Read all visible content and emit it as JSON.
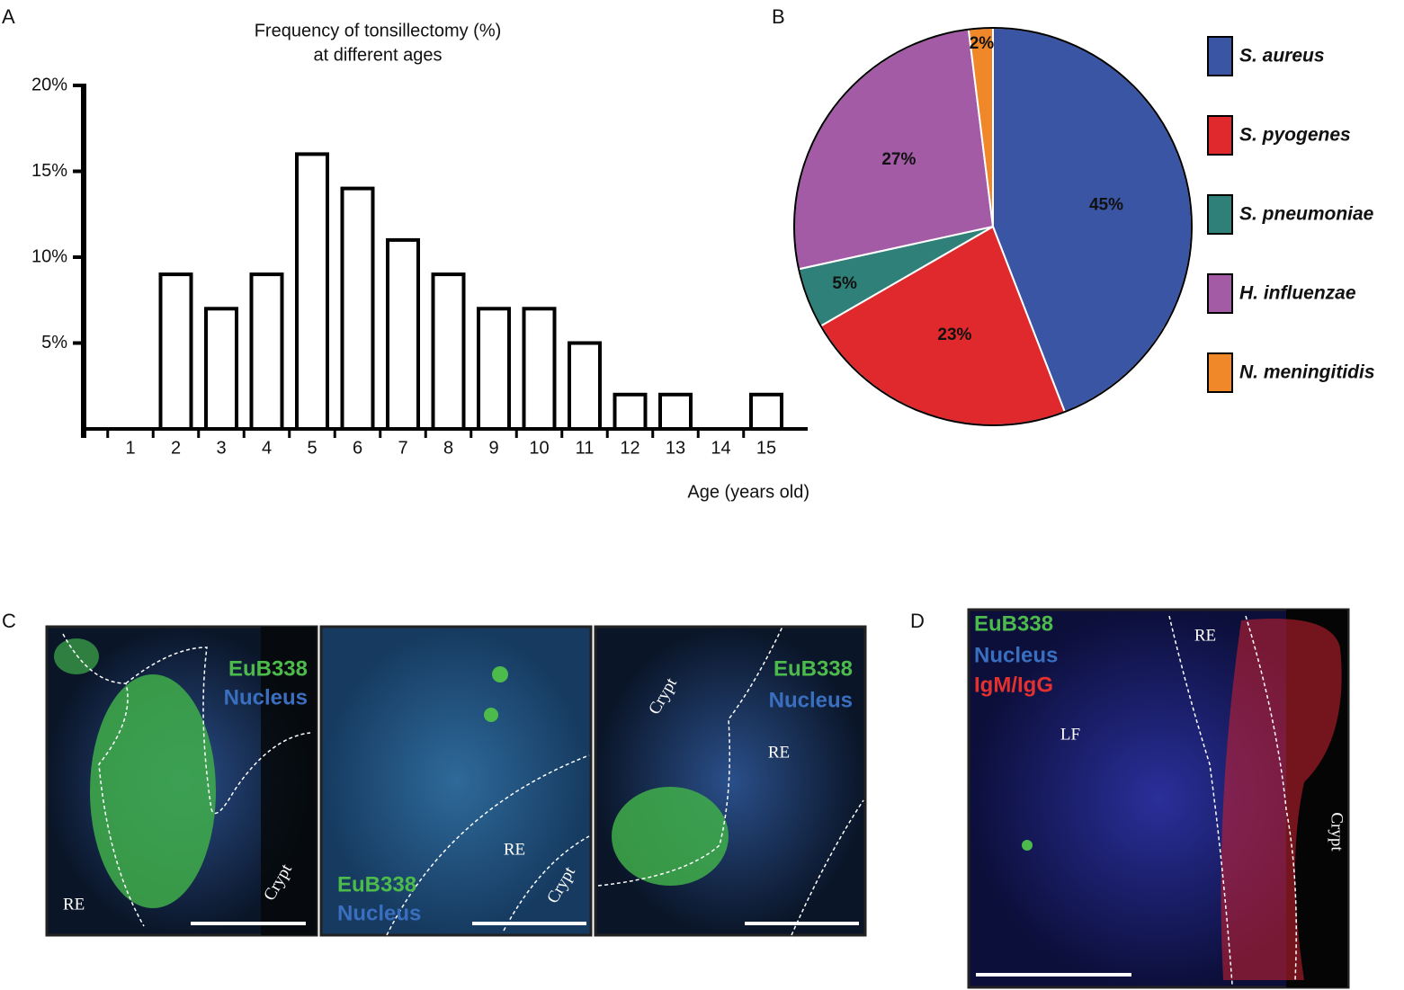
{
  "chart_data": [
    {
      "type": "bar",
      "title": "Frequency of tonsillectomy (%)",
      "subtitle": "at different ages",
      "xlabel": "Age (years old)",
      "categories": [
        "1",
        "2",
        "3",
        "4",
        "5",
        "6",
        "7",
        "8",
        "9",
        "10",
        "11",
        "12",
        "13",
        "14",
        "15"
      ],
      "values": [
        0,
        9,
        7,
        9,
        16,
        14,
        11,
        9,
        7,
        7,
        5,
        2,
        2,
        0,
        2
      ],
      "color": "#ffffff",
      "ylim": [
        0,
        20
      ],
      "yticks": [
        {
          "value": 5,
          "label": "5%"
        },
        {
          "value": 10,
          "label": "10%"
        },
        {
          "value": 15,
          "label": "15%"
        },
        {
          "value": 20,
          "label": "20%"
        }
      ]
    },
    {
      "type": "pie",
      "legend": "right",
      "categories": [
        "S. aureus",
        "S. pyogenes",
        "S. pneumoniae",
        "H. influenzae",
        "N. meningitidis"
      ],
      "values": [
        45,
        23,
        5,
        27,
        2
      ],
      "value_labels": [
        "45%",
        "23%",
        "5%",
        "27%",
        "2%"
      ],
      "colors": [
        "#3b55a5",
        "#e0292c",
        "#2f8078",
        "#a35ba6",
        "#f0882a"
      ]
    }
  ],
  "panels": {
    "letters": [
      "A",
      "B",
      "C",
      "D"
    ],
    "images": [
      {
        "labels": [
          "EuB338",
          "Nucleus",
          "RE",
          "Crypt"
        ]
      },
      {
        "labels": [
          "EuB338",
          "Nucleus",
          "RE",
          "Crypt"
        ]
      },
      {
        "labels": [
          "EuB338",
          "Nucleus",
          "Crypt",
          "RE"
        ]
      },
      {
        "labels": [
          "EuB338",
          "Nucleus",
          "IgM/IgG",
          "RE",
          "LF",
          "Crypt"
        ]
      }
    ]
  }
}
